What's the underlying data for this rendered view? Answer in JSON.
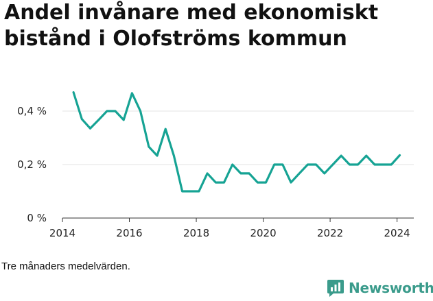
{
  "title": "Andel invånare med ekonomiskt bistånd i Olofströms kommun",
  "note": "Tre månaders medelvärden.",
  "brand": {
    "name": "Newsworthy",
    "logo_icon": "newsworthy-logo-icon",
    "color": "#3a9b8b"
  },
  "chart_data": {
    "type": "line",
    "title": "Andel invånare med ekonomiskt bistånd i Olofströms kommun",
    "xlabel": "",
    "ylabel": "",
    "ylim": [
      0,
      0.5
    ],
    "xlim": [
      2014.0,
      2024.5
    ],
    "y_ticks": [
      0,
      0.2,
      0.4
    ],
    "y_tick_labels": [
      "0 %",
      "0,2 %",
      "0,4 %"
    ],
    "x_ticks": [
      2014,
      2016,
      2018,
      2020,
      2022,
      2024
    ],
    "x_tick_labels": [
      "2014",
      "2016",
      "2018",
      "2020",
      "2022",
      "2024"
    ],
    "grid": "horizontal",
    "line_color": "#16a394",
    "series": [
      {
        "x": [
          2014.33,
          2014.58,
          2014.83,
          2015.08,
          2015.33,
          2015.58,
          2015.83,
          2016.08,
          2016.33,
          2016.58,
          2016.83,
          2017.08,
          2017.33,
          2017.58,
          2017.83,
          2018.08,
          2018.33,
          2018.58,
          2018.83,
          2019.08,
          2019.33,
          2019.58,
          2019.83,
          2020.08,
          2020.33,
          2020.58,
          2020.83,
          2021.08,
          2021.33,
          2021.58,
          2021.83,
          2022.08,
          2022.33,
          2022.58,
          2022.83,
          2023.08,
          2023.33,
          2023.58,
          2023.83,
          2024.08
        ],
        "values": [
          0.47,
          0.37,
          0.335,
          0.367,
          0.4,
          0.4,
          0.367,
          0.467,
          0.4,
          0.267,
          0.233,
          0.333,
          0.233,
          0.1,
          0.1,
          0.1,
          0.167,
          0.133,
          0.133,
          0.2,
          0.167,
          0.167,
          0.133,
          0.133,
          0.2,
          0.2,
          0.133,
          0.167,
          0.2,
          0.2,
          0.167,
          0.2,
          0.233,
          0.2,
          0.2,
          0.233,
          0.2,
          0.2,
          0.2,
          0.235
        ]
      }
    ]
  }
}
